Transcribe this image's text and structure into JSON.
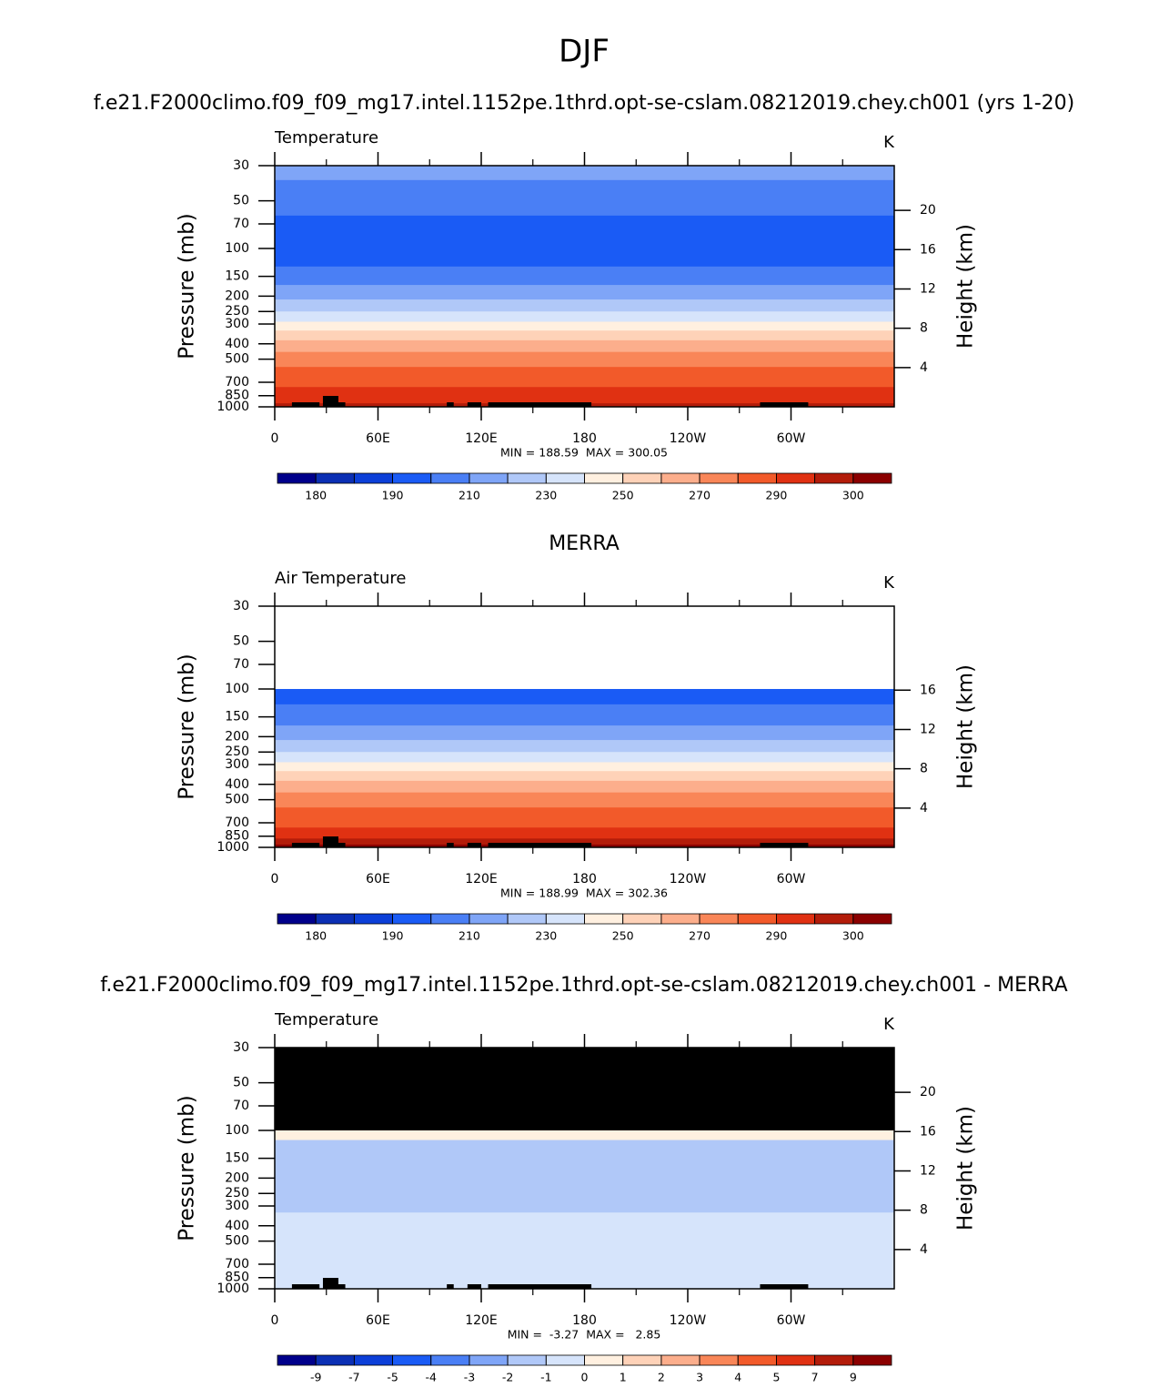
{
  "title": "DJF",
  "chart_data": [
    {
      "type": "contour",
      "title": "f.e21.F2000climo.f09_f09_mg17.intel.1152pe.1thrd.opt-se-cslam.08212019.chey.ch001 (yrs 1-20)",
      "left_label": "Temperature",
      "units": "K",
      "ylabel": "Pressure (mb)",
      "y2label": "Height (km)",
      "ylim": [
        1000,
        30
      ],
      "log_y": true,
      "yticks": [
        30,
        50,
        70,
        100,
        150,
        200,
        250,
        300,
        400,
        500,
        700,
        850,
        1000
      ],
      "y2ticks": [
        4,
        8,
        12,
        16,
        20
      ],
      "xlim": [
        0,
        360
      ],
      "xticks": [
        0,
        {
          "value": 60,
          "label": "60E"
        },
        {
          "value": 120,
          "label": "120E"
        },
        180,
        {
          "value": 240,
          "label": "120W"
        },
        {
          "value": 300,
          "label": "60W"
        }
      ],
      "stats": "MIN = 188.59  MAX = 300.05",
      "profile": {
        "pressure": [
          30,
          37,
          62,
          130,
          170,
          210,
          250,
          290,
          330,
          380,
          450,
          560,
          750,
          950
        ],
        "values": [
          215,
          205,
          195,
          205,
          215,
          225,
          235,
          245,
          255,
          265,
          275,
          285,
          292,
          297
        ]
      },
      "missing_color": "#ffffff",
      "colorbar": {
        "levels": [
          180,
          185,
          190,
          200,
          210,
          220,
          230,
          240,
          250,
          260,
          270,
          280,
          290,
          295,
          300
        ],
        "level_labels": [
          180,
          190,
          210,
          230,
          250,
          270,
          290,
          300
        ],
        "colors": [
          "#00008b",
          "#0b2fb4",
          "#0c3fd8",
          "#1a5bf5",
          "#4a7ff5",
          "#7fa5f7",
          "#b0c8f8",
          "#d6e4fb",
          "#fff0e0",
          "#fed2b8",
          "#fcae8c",
          "#f98658",
          "#f25a2a",
          "#e03112",
          "#b31c0a",
          "#8b0000"
        ]
      }
    },
    {
      "type": "contour",
      "title": "MERRA",
      "left_label": "Air Temperature",
      "units": "K",
      "ylabel": "Pressure (mb)",
      "y2label": "Height (km)",
      "ylim": [
        1000,
        30
      ],
      "log_y": true,
      "yticks": [
        30,
        50,
        70,
        100,
        150,
        200,
        250,
        300,
        400,
        500,
        700,
        850,
        1000
      ],
      "y2ticks": [
        4,
        8,
        12,
        16
      ],
      "xlim": [
        0,
        360
      ],
      "xticks": [
        0,
        {
          "value": 60,
          "label": "60E"
        },
        {
          "value": 120,
          "label": "120E"
        },
        180,
        {
          "value": 240,
          "label": "120W"
        },
        {
          "value": 300,
          "label": "60W"
        }
      ],
      "stats": "MIN = 188.99  MAX = 302.36",
      "profile": {
        "pressure": [
          30,
          100,
          125,
          170,
          210,
          250,
          290,
          330,
          380,
          450,
          560,
          750,
          880,
          960
        ],
        "values": [
          null,
          195,
          205,
          215,
          225,
          235,
          245,
          255,
          265,
          275,
          285,
          292,
          297,
          301
        ]
      },
      "missing_color": "#ffffff",
      "colorbar": {
        "levels": [
          180,
          185,
          190,
          200,
          210,
          220,
          230,
          240,
          250,
          260,
          270,
          280,
          290,
          295,
          300
        ],
        "level_labels": [
          180,
          190,
          210,
          230,
          250,
          270,
          290,
          300
        ],
        "colors": [
          "#00008b",
          "#0b2fb4",
          "#0c3fd8",
          "#1a5bf5",
          "#4a7ff5",
          "#7fa5f7",
          "#b0c8f8",
          "#d6e4fb",
          "#fff0e0",
          "#fed2b8",
          "#fcae8c",
          "#f98658",
          "#f25a2a",
          "#e03112",
          "#b31c0a",
          "#8b0000"
        ]
      }
    },
    {
      "type": "contour",
      "title": "f.e21.F2000climo.f09_f09_mg17.intel.1152pe.1thrd.opt-se-cslam.08212019.chey.ch001 - MERRA",
      "left_label": "Temperature",
      "units": "K",
      "ylabel": "Pressure (mb)",
      "y2label": "Height (km)",
      "ylim": [
        1000,
        30
      ],
      "log_y": true,
      "yticks": [
        30,
        50,
        70,
        100,
        150,
        200,
        250,
        300,
        400,
        500,
        700,
        850,
        1000
      ],
      "y2ticks": [
        4,
        8,
        12,
        16,
        20
      ],
      "xlim": [
        0,
        360
      ],
      "xticks": [
        0,
        {
          "value": 60,
          "label": "60E"
        },
        {
          "value": 120,
          "label": "120E"
        },
        180,
        {
          "value": 240,
          "label": "120W"
        },
        {
          "value": 300,
          "label": "60W"
        }
      ],
      "stats": "MIN =  -3.27  MAX =   2.85",
      "profile": {
        "pressure": [
          30,
          100,
          115,
          140,
          330
        ],
        "values": [
          null,
          0.5,
          -1.5,
          -1.5,
          -0.5
        ]
      },
      "missing_color": "#000000",
      "colorbar": {
        "levels": [
          -9,
          -7,
          -5,
          -4,
          -3,
          -2,
          -1,
          0,
          1,
          2,
          3,
          4,
          5,
          7,
          9
        ],
        "colors": [
          "#00008b",
          "#0b2fb4",
          "#0c3fd8",
          "#1a5bf5",
          "#4a7ff5",
          "#7fa5f7",
          "#b0c8f8",
          "#d6e4fb",
          "#fff0e0",
          "#fed2b8",
          "#fcae8c",
          "#f98658",
          "#f25a2a",
          "#e03112",
          "#b31c0a",
          "#8b0000"
        ]
      }
    }
  ]
}
